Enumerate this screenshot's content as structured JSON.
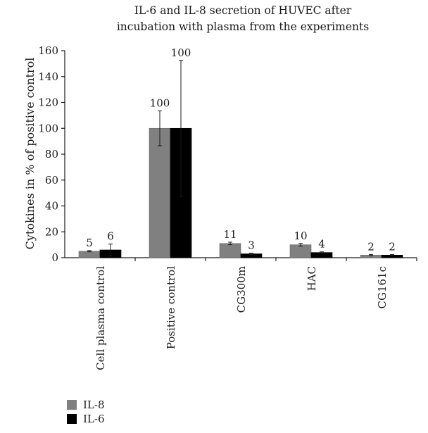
{
  "chart_data": {
    "type": "bar",
    "title": "IL-6 and IL-8 secretion of HUVEC after incubation with plasma from the experiments",
    "title_lines": [
      "IL-6 and IL-8 secretion of HUVEC after",
      "incubation with plasma from the experiments"
    ],
    "ylabel": "Cytokines in % of positive control",
    "xlabel": "",
    "ylim": [
      0,
      160
    ],
    "yticks": [
      0,
      20,
      40,
      60,
      80,
      100,
      120,
      140,
      160
    ],
    "grid": false,
    "legend_position": "bottom-left",
    "categories": [
      "Cell plasma control",
      "Positive control",
      "CG300m",
      "HAC",
      "CG161c"
    ],
    "series": [
      {
        "name": "IL-8",
        "color": "#808080",
        "values": [
          5,
          100,
          11,
          10,
          2
        ],
        "error": [
          0.5,
          13.5,
          1,
          1,
          0.5
        ],
        "labels": [
          "5",
          "100",
          "11",
          "10",
          "2"
        ]
      },
      {
        "name": "IL-6",
        "color": "#000000",
        "values": [
          6,
          100,
          3,
          4,
          2
        ],
        "error": [
          4.5,
          52.5,
          0.5,
          0.5,
          0.5
        ],
        "labels": [
          "6",
          "100",
          "3",
          "4",
          "2"
        ]
      }
    ]
  }
}
